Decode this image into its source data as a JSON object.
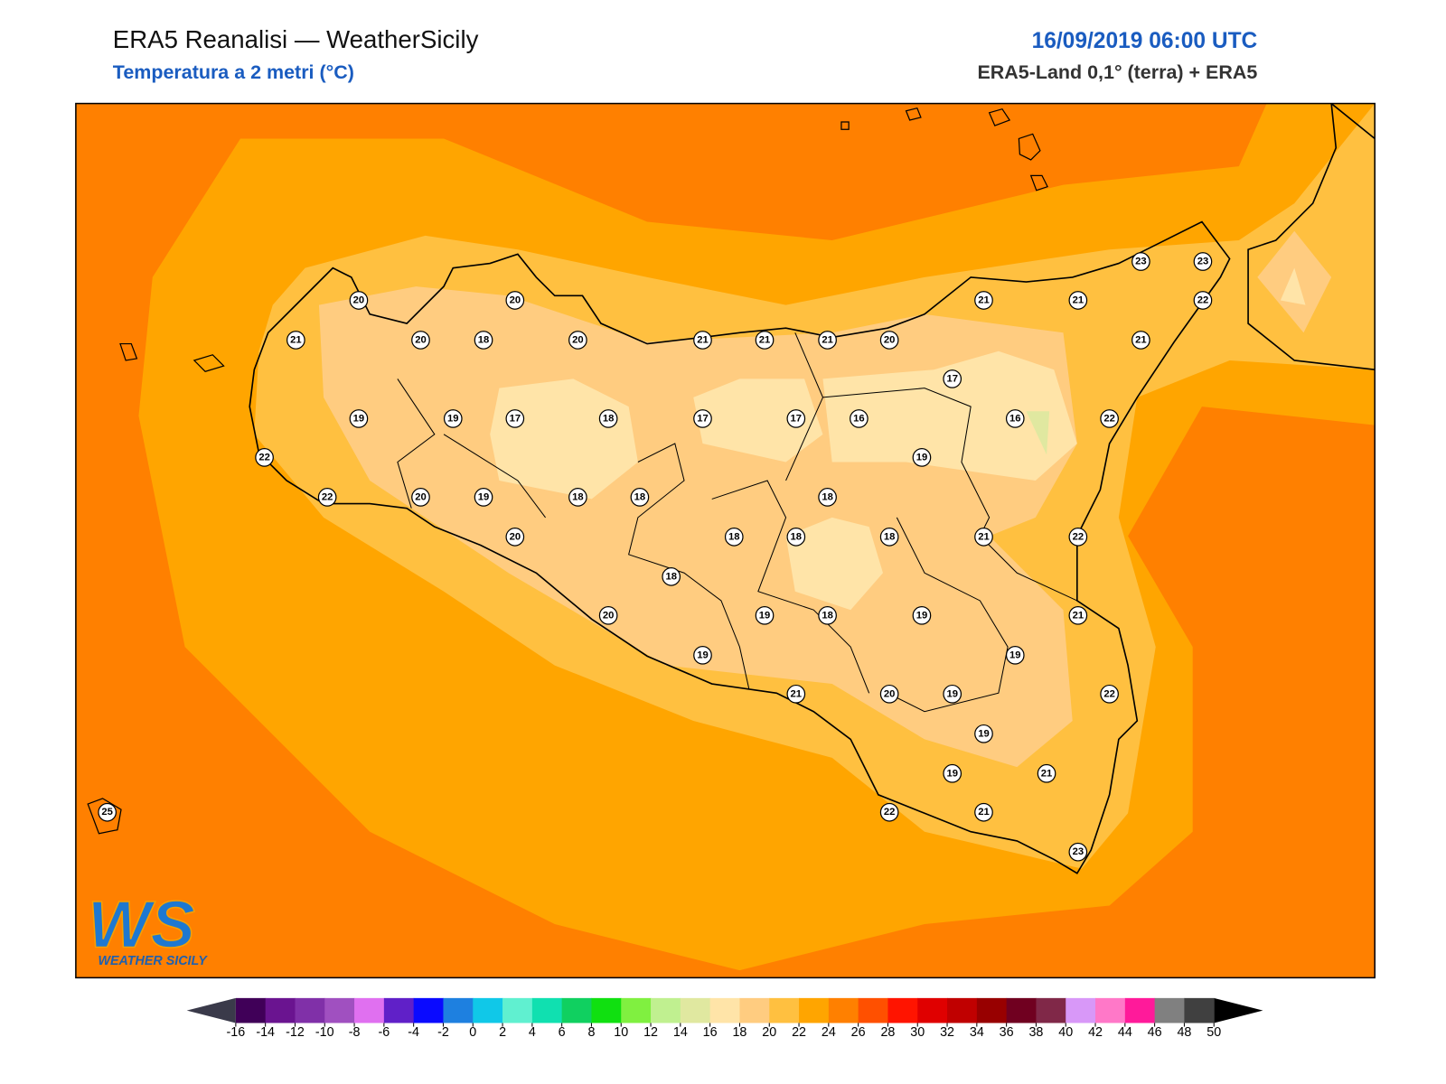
{
  "header": {
    "title": "ERA5 Reanalisi — WeatherSicily",
    "subtitle": "Temperatura a 2 metri (°C)",
    "date": "16/09/2019 06:00 UTC",
    "source": "ERA5-Land 0,1° (terra) + ERA5"
  },
  "logo": {
    "mark": "WS",
    "text": "WEATHER SICILY"
  },
  "stations": {
    "values": [
      20,
      20,
      21,
      20,
      18,
      20,
      21,
      21,
      21,
      20,
      21,
      21,
      23,
      23,
      22,
      21,
      17,
      19,
      19,
      17,
      18,
      17,
      17,
      16,
      16,
      22,
      19,
      22,
      22,
      20,
      19,
      18,
      18,
      18,
      20,
      18,
      18,
      18,
      21,
      22,
      18,
      20,
      19,
      18,
      19,
      21,
      19,
      19,
      21,
      20,
      19,
      22,
      19,
      19,
      21,
      22,
      21,
      23,
      25
    ]
  },
  "colorbar": {
    "ticks": [
      -16,
      -14,
      -12,
      -10,
      -8,
      -6,
      -4,
      -2,
      0,
      2,
      4,
      6,
      8,
      10,
      12,
      14,
      16,
      18,
      20,
      22,
      24,
      26,
      28,
      30,
      32,
      34,
      36,
      38,
      40,
      42,
      44,
      46,
      48,
      50
    ],
    "colors": [
      "#400058",
      "#6a1490",
      "#8030a8",
      "#a050c0",
      "#e070f0",
      "#6020c8",
      "#0a0aff",
      "#1e80e0",
      "#10c8e8",
      "#60f0d0",
      "#10e0b0",
      "#10d060",
      "#10e010",
      "#80f040",
      "#c0f090",
      "#e0e8a0",
      "#ffe4a8",
      "#ffcc80",
      "#ffc040",
      "#ffa500",
      "#ff8000",
      "#ff5000",
      "#ff1400",
      "#e00000",
      "#c00000",
      "#980000",
      "#700020",
      "#802848",
      "#d898f8",
      "#ff78c8",
      "#ff1a9a",
      "#808080",
      "#404040"
    ],
    "under_color": "#3a3a4a",
    "over_color": "#000000"
  }
}
